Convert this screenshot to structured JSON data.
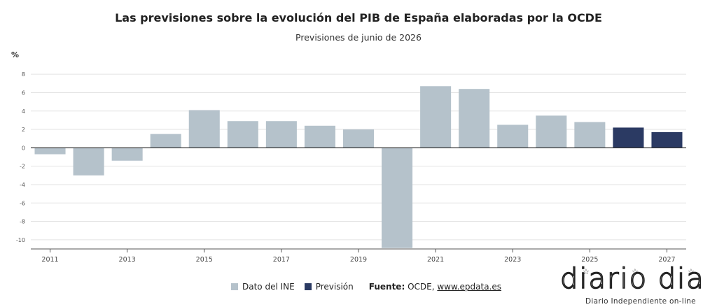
{
  "header": {
    "title": "Las previsiones sobre la evolución del PIB de España elaboradas por la OCDE",
    "subtitle": "Previsiones de junio de 2026",
    "unit": "%"
  },
  "chart_data": {
    "type": "bar",
    "title": "Las previsiones sobre la evolución del PIB de España elaboradas por la OCDE",
    "subtitle": "Previsiones de junio de 2026",
    "ylabel": "%",
    "ylim": [
      -11,
      9
    ],
    "yticks": [
      8,
      6,
      4,
      2,
      0,
      -2,
      -4,
      -6,
      -8,
      -10
    ],
    "x_tick_labels": [
      "2011",
      "2013",
      "2015",
      "2017",
      "2019",
      "2021",
      "2023",
      "2025",
      "2027"
    ],
    "categories": [
      "2011",
      "2012",
      "2013",
      "2014",
      "2015",
      "2016",
      "2017",
      "2018",
      "2019",
      "2020",
      "2021",
      "2022",
      "2023",
      "2024",
      "2025",
      "2026",
      "2027"
    ],
    "values": [
      -0.7,
      -3.0,
      -1.4,
      1.5,
      4.1,
      2.9,
      2.9,
      2.4,
      2.0,
      -10.9,
      6.7,
      6.4,
      2.5,
      3.5,
      2.8,
      2.2,
      1.7
    ],
    "series_type": [
      "Dato del INE",
      "Dato del INE",
      "Dato del INE",
      "Dato del INE",
      "Dato del INE",
      "Dato del INE",
      "Dato del INE",
      "Dato del INE",
      "Dato del INE",
      "Dato del INE",
      "Dato del INE",
      "Dato del INE",
      "Dato del INE",
      "Dato del INE",
      "Dato del INE",
      "Previsión",
      "Previsión"
    ],
    "legend": [
      {
        "name": "Dato del INE",
        "color": "#b5c2cb"
      },
      {
        "name": "Previsión",
        "color": "#2b3a63"
      }
    ],
    "grid": true,
    "legend_position": "bottom"
  },
  "footer": {
    "source_label": "Fuente:",
    "source_text": "OCDE, ",
    "source_link": "www.epdata.es"
  },
  "logo": {
    "text": "diario dia",
    "tagline": "Diario Independiente on-line",
    "star": "☆"
  }
}
